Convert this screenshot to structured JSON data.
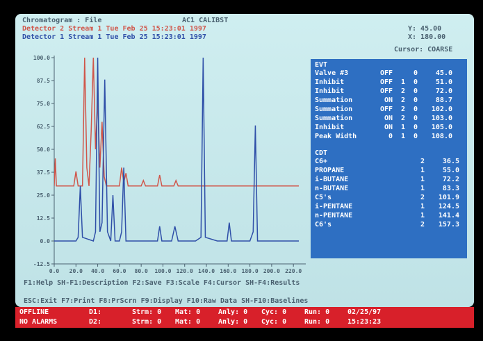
{
  "header": {
    "title": "Chromatogram : File",
    "file": "AC1 CALIBST",
    "detector2": "Detector 2 Stream 1 Tue Feb 25 15:23:01 1997",
    "detector1": "Detector 1 Stream 1 Tue Feb 25 15:23:01 1997",
    "y_readout": "Y: 45.00",
    "x_readout": "X: 180.00",
    "cursor": "Cursor: COARSE"
  },
  "chart_data": {
    "type": "line",
    "series": [
      {
        "color": "#d0564a",
        "x": [
          0,
          1,
          2,
          3,
          10,
          18,
          20,
          22,
          26,
          28,
          30,
          32,
          34,
          36,
          38,
          40,
          42,
          44,
          46,
          48,
          50,
          55,
          60,
          62,
          64,
          66,
          68,
          72,
          80,
          82,
          84,
          95,
          97,
          99,
          110,
          112,
          114,
          130,
          225
        ],
        "values": [
          30,
          45,
          30,
          30,
          30,
          30,
          38,
          30,
          30,
          100,
          40,
          30,
          60,
          100,
          50,
          78,
          40,
          65,
          35,
          30,
          30,
          30,
          30,
          40,
          32,
          37,
          30,
          30,
          30,
          33,
          30,
          30,
          36,
          30,
          30,
          33,
          30,
          30,
          30
        ]
      },
      {
        "color": "#2f4fa8",
        "x": [
          0,
          10,
          20,
          22,
          24,
          26,
          36,
          38,
          40,
          42,
          44,
          46.5,
          49,
          52,
          54,
          56,
          60,
          62,
          64,
          66,
          80,
          95,
          97,
          99,
          108,
          111,
          114,
          130,
          135,
          137,
          139,
          150,
          159,
          161,
          163,
          180,
          183,
          185,
          187,
          200,
          225
        ],
        "values": [
          0,
          0,
          0,
          2,
          30,
          2,
          0,
          5,
          100,
          5,
          10,
          88,
          5,
          0,
          25,
          0,
          0,
          5,
          40,
          0,
          0,
          0,
          8,
          0,
          0,
          8,
          0,
          0,
          2,
          100,
          2,
          0,
          0,
          10,
          0,
          0,
          5,
          63,
          0,
          0,
          0
        ]
      }
    ],
    "xlim": [
      0,
      225
    ],
    "xticks": [
      {
        "value": 0,
        "label": "0.0"
      },
      {
        "value": 20,
        "label": "20.0"
      },
      {
        "value": 40,
        "label": "40.0"
      },
      {
        "value": 60,
        "label": "60.0"
      },
      {
        "value": 80,
        "label": "80.0"
      },
      {
        "value": 100,
        "label": "100.0"
      },
      {
        "value": 120,
        "label": "120.0"
      },
      {
        "value": 140,
        "label": "140.0"
      },
      {
        "value": 160,
        "label": "160.0"
      },
      {
        "value": 180,
        "label": "180.0"
      },
      {
        "value": 200,
        "label": "200.0"
      },
      {
        "value": 220,
        "label": "220.0"
      }
    ],
    "ylim": [
      -12.5,
      100
    ],
    "yticks": [
      {
        "value": 100,
        "label": "100.0"
      },
      87.5,
      {
        "value": 75,
        "label": "75.0"
      },
      62.5,
      {
        "value": 50,
        "label": "50.0"
      },
      37.5,
      {
        "value": 25,
        "label": "25.0"
      },
      12.5,
      {
        "value": 0,
        "label": "0.0"
      },
      -12.5
    ]
  },
  "events": {
    "title": "EVT",
    "rows": [
      [
        "Valve #3",
        "OFF",
        "",
        "0",
        "45.0"
      ],
      [
        "Inhibit",
        "OFF",
        "1",
        "0",
        "51.0"
      ],
      [
        "Inhibit",
        "OFF",
        "2",
        "0",
        "72.0"
      ],
      [
        "Summation",
        "ON",
        "2",
        "0",
        "88.7"
      ],
      [
        "Summation",
        "OFF",
        "2",
        "0",
        "102.0"
      ],
      [
        "Summation",
        "ON",
        "2",
        "0",
        "103.0"
      ],
      [
        "Inhibit",
        "ON",
        "1",
        "0",
        "105.0"
      ],
      [
        "Peak Width",
        "0",
        "1",
        "0",
        "108.0"
      ]
    ]
  },
  "cdt": {
    "title": "CDT",
    "rows": [
      [
        "C6+",
        "2",
        "36.5"
      ],
      [
        "PROPANE",
        "1",
        "55.0"
      ],
      [
        "i-BUTANE",
        "1",
        "72.2"
      ],
      [
        "n-BUTANE",
        "1",
        "83.3"
      ],
      [
        "C5's",
        "2",
        "101.9"
      ],
      [
        "i-PENTANE",
        "1",
        "124.5"
      ],
      [
        "n-PENTANE",
        "1",
        "141.4"
      ],
      [
        "C6's",
        "2",
        "157.3"
      ]
    ]
  },
  "function_keys": [
    "F1:Help SH-F1:Description F2:Save F3:Scale F4:Cursor SH-F4:Results",
    "ESC:Exit F7:Print F8:PrScrn F9:Display F10:Raw Data SH-F10:Baselines"
  ],
  "status": [
    [
      "OFFLINE",
      "D1:",
      "Strm: 0",
      "Mat: 0",
      "Anly: 0",
      "Cyc: 0",
      "Run: 0",
      "02/25/97"
    ],
    [
      "NO ALARMS",
      "D2:",
      "Strm: 0",
      "Mat: 0",
      "Anly: 0",
      "Cyc: 0",
      "Run: 0",
      "15:23:23"
    ]
  ]
}
